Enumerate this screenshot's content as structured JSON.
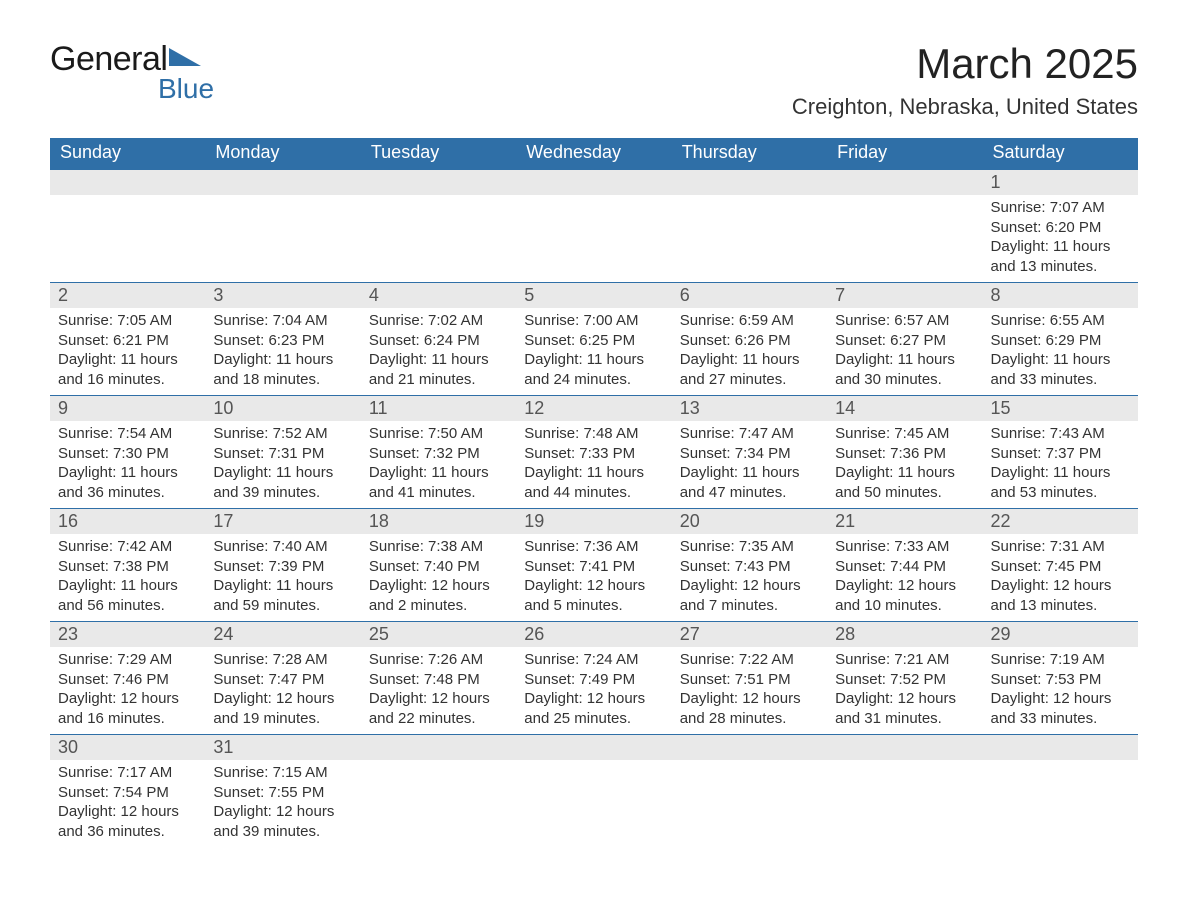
{
  "logo": {
    "text1": "General",
    "text2": "Blue",
    "flag_color": "#2f6fa7",
    "text2_color": "#2f6fa7"
  },
  "title": {
    "month": "March 2025",
    "location": "Creighton, Nebraska, United States"
  },
  "colors": {
    "header_bg": "#2f6fa7",
    "header_text": "#ffffff",
    "daynum_bg": "#e9e9e9",
    "daynum_text": "#555555",
    "body_text": "#333333",
    "border": "#2f6fa7"
  },
  "days_of_week": [
    "Sunday",
    "Monday",
    "Tuesday",
    "Wednesday",
    "Thursday",
    "Friday",
    "Saturday"
  ],
  "weeks": [
    [
      null,
      null,
      null,
      null,
      null,
      null,
      {
        "n": "1",
        "sr": "Sunrise: 7:07 AM",
        "ss": "Sunset: 6:20 PM",
        "dl1": "Daylight: 11 hours",
        "dl2": "and 13 minutes."
      }
    ],
    [
      {
        "n": "2",
        "sr": "Sunrise: 7:05 AM",
        "ss": "Sunset: 6:21 PM",
        "dl1": "Daylight: 11 hours",
        "dl2": "and 16 minutes."
      },
      {
        "n": "3",
        "sr": "Sunrise: 7:04 AM",
        "ss": "Sunset: 6:23 PM",
        "dl1": "Daylight: 11 hours",
        "dl2": "and 18 minutes."
      },
      {
        "n": "4",
        "sr": "Sunrise: 7:02 AM",
        "ss": "Sunset: 6:24 PM",
        "dl1": "Daylight: 11 hours",
        "dl2": "and 21 minutes."
      },
      {
        "n": "5",
        "sr": "Sunrise: 7:00 AM",
        "ss": "Sunset: 6:25 PM",
        "dl1": "Daylight: 11 hours",
        "dl2": "and 24 minutes."
      },
      {
        "n": "6",
        "sr": "Sunrise: 6:59 AM",
        "ss": "Sunset: 6:26 PM",
        "dl1": "Daylight: 11 hours",
        "dl2": "and 27 minutes."
      },
      {
        "n": "7",
        "sr": "Sunrise: 6:57 AM",
        "ss": "Sunset: 6:27 PM",
        "dl1": "Daylight: 11 hours",
        "dl2": "and 30 minutes."
      },
      {
        "n": "8",
        "sr": "Sunrise: 6:55 AM",
        "ss": "Sunset: 6:29 PM",
        "dl1": "Daylight: 11 hours",
        "dl2": "and 33 minutes."
      }
    ],
    [
      {
        "n": "9",
        "sr": "Sunrise: 7:54 AM",
        "ss": "Sunset: 7:30 PM",
        "dl1": "Daylight: 11 hours",
        "dl2": "and 36 minutes."
      },
      {
        "n": "10",
        "sr": "Sunrise: 7:52 AM",
        "ss": "Sunset: 7:31 PM",
        "dl1": "Daylight: 11 hours",
        "dl2": "and 39 minutes."
      },
      {
        "n": "11",
        "sr": "Sunrise: 7:50 AM",
        "ss": "Sunset: 7:32 PM",
        "dl1": "Daylight: 11 hours",
        "dl2": "and 41 minutes."
      },
      {
        "n": "12",
        "sr": "Sunrise: 7:48 AM",
        "ss": "Sunset: 7:33 PM",
        "dl1": "Daylight: 11 hours",
        "dl2": "and 44 minutes."
      },
      {
        "n": "13",
        "sr": "Sunrise: 7:47 AM",
        "ss": "Sunset: 7:34 PM",
        "dl1": "Daylight: 11 hours",
        "dl2": "and 47 minutes."
      },
      {
        "n": "14",
        "sr": "Sunrise: 7:45 AM",
        "ss": "Sunset: 7:36 PM",
        "dl1": "Daylight: 11 hours",
        "dl2": "and 50 minutes."
      },
      {
        "n": "15",
        "sr": "Sunrise: 7:43 AM",
        "ss": "Sunset: 7:37 PM",
        "dl1": "Daylight: 11 hours",
        "dl2": "and 53 minutes."
      }
    ],
    [
      {
        "n": "16",
        "sr": "Sunrise: 7:42 AM",
        "ss": "Sunset: 7:38 PM",
        "dl1": "Daylight: 11 hours",
        "dl2": "and 56 minutes."
      },
      {
        "n": "17",
        "sr": "Sunrise: 7:40 AM",
        "ss": "Sunset: 7:39 PM",
        "dl1": "Daylight: 11 hours",
        "dl2": "and 59 minutes."
      },
      {
        "n": "18",
        "sr": "Sunrise: 7:38 AM",
        "ss": "Sunset: 7:40 PM",
        "dl1": "Daylight: 12 hours",
        "dl2": "and 2 minutes."
      },
      {
        "n": "19",
        "sr": "Sunrise: 7:36 AM",
        "ss": "Sunset: 7:41 PM",
        "dl1": "Daylight: 12 hours",
        "dl2": "and 5 minutes."
      },
      {
        "n": "20",
        "sr": "Sunrise: 7:35 AM",
        "ss": "Sunset: 7:43 PM",
        "dl1": "Daylight: 12 hours",
        "dl2": "and 7 minutes."
      },
      {
        "n": "21",
        "sr": "Sunrise: 7:33 AM",
        "ss": "Sunset: 7:44 PM",
        "dl1": "Daylight: 12 hours",
        "dl2": "and 10 minutes."
      },
      {
        "n": "22",
        "sr": "Sunrise: 7:31 AM",
        "ss": "Sunset: 7:45 PM",
        "dl1": "Daylight: 12 hours",
        "dl2": "and 13 minutes."
      }
    ],
    [
      {
        "n": "23",
        "sr": "Sunrise: 7:29 AM",
        "ss": "Sunset: 7:46 PM",
        "dl1": "Daylight: 12 hours",
        "dl2": "and 16 minutes."
      },
      {
        "n": "24",
        "sr": "Sunrise: 7:28 AM",
        "ss": "Sunset: 7:47 PM",
        "dl1": "Daylight: 12 hours",
        "dl2": "and 19 minutes."
      },
      {
        "n": "25",
        "sr": "Sunrise: 7:26 AM",
        "ss": "Sunset: 7:48 PM",
        "dl1": "Daylight: 12 hours",
        "dl2": "and 22 minutes."
      },
      {
        "n": "26",
        "sr": "Sunrise: 7:24 AM",
        "ss": "Sunset: 7:49 PM",
        "dl1": "Daylight: 12 hours",
        "dl2": "and 25 minutes."
      },
      {
        "n": "27",
        "sr": "Sunrise: 7:22 AM",
        "ss": "Sunset: 7:51 PM",
        "dl1": "Daylight: 12 hours",
        "dl2": "and 28 minutes."
      },
      {
        "n": "28",
        "sr": "Sunrise: 7:21 AM",
        "ss": "Sunset: 7:52 PM",
        "dl1": "Daylight: 12 hours",
        "dl2": "and 31 minutes."
      },
      {
        "n": "29",
        "sr": "Sunrise: 7:19 AM",
        "ss": "Sunset: 7:53 PM",
        "dl1": "Daylight: 12 hours",
        "dl2": "and 33 minutes."
      }
    ],
    [
      {
        "n": "30",
        "sr": "Sunrise: 7:17 AM",
        "ss": "Sunset: 7:54 PM",
        "dl1": "Daylight: 12 hours",
        "dl2": "and 36 minutes."
      },
      {
        "n": "31",
        "sr": "Sunrise: 7:15 AM",
        "ss": "Sunset: 7:55 PM",
        "dl1": "Daylight: 12 hours",
        "dl2": "and 39 minutes."
      },
      null,
      null,
      null,
      null,
      null
    ]
  ]
}
